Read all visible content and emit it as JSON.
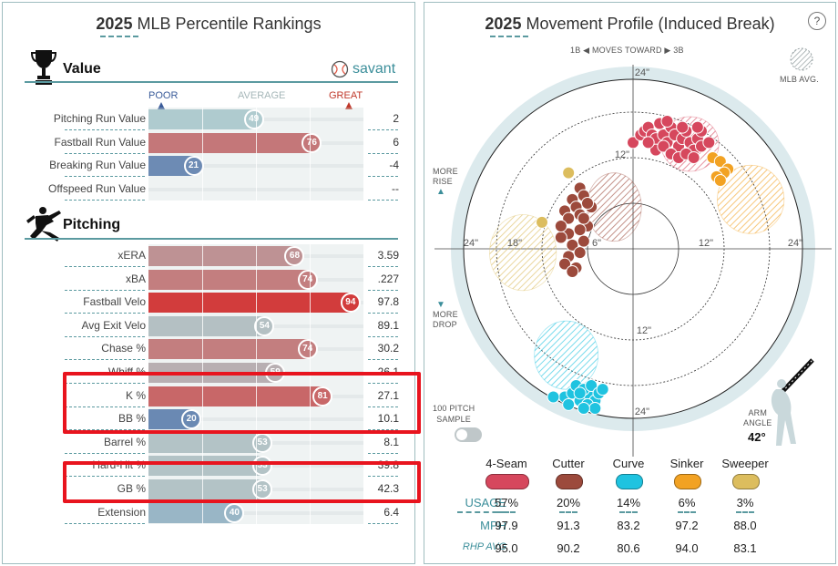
{
  "left_panel": {
    "year": "2025",
    "title": "MLB Percentile Rankings",
    "scale_labels": {
      "poor": "POOR",
      "average": "AVERAGE",
      "great": "GREAT"
    },
    "value_section": {
      "title": "Value",
      "logo": "savant",
      "rows": [
        {
          "label": "Pitching Run Value",
          "pct": 49,
          "value": "2"
        },
        {
          "label": "Fastball Run Value",
          "pct": 76,
          "value": "6"
        },
        {
          "label": "Breaking Run Value",
          "pct": 21,
          "value": "-4"
        },
        {
          "label": "Offspeed Run Value",
          "pct": null,
          "value": "--"
        }
      ]
    },
    "pitching_section": {
      "title": "Pitching",
      "rows": [
        {
          "label": "xERA",
          "pct": 68,
          "value": "3.59"
        },
        {
          "label": "xBA",
          "pct": 74,
          "value": ".227"
        },
        {
          "label": "Fastball Velo",
          "pct": 94,
          "value": "97.8"
        },
        {
          "label": "Avg Exit Velo",
          "pct": 54,
          "value": "89.1"
        },
        {
          "label": "Chase %",
          "pct": 74,
          "value": "30.2"
        },
        {
          "label": "Whiff %",
          "pct": 59,
          "value": "26.1"
        },
        {
          "label": "K %",
          "pct": 81,
          "value": "27.1"
        },
        {
          "label": "BB %",
          "pct": 20,
          "value": "10.1"
        },
        {
          "label": "Barrel %",
          "pct": 53,
          "value": "8.1"
        },
        {
          "label": "Hard-Hit %",
          "pct": 53,
          "value": "39.8"
        },
        {
          "label": "GB %",
          "pct": 53,
          "value": "42.3"
        },
        {
          "label": "Extension",
          "pct": 40,
          "value": "6.4"
        }
      ]
    }
  },
  "right_panel": {
    "year": "2025",
    "title": "Movement Profile (Induced Break)",
    "help": "?",
    "direction_text": {
      "left": "1B",
      "middle": "MOVES TOWARD",
      "right": "3B"
    },
    "legend_avg": "MLB AVG.",
    "more_rise": [
      "MORE",
      "RISE"
    ],
    "more_drop": [
      "MORE",
      "DROP"
    ],
    "sample": [
      "100 PITCH",
      "SAMPLE"
    ],
    "arm_angle_label": [
      "ARM",
      "ANGLE"
    ],
    "arm_angle_value": "42°",
    "ring_labels": {
      "inner": "6\"",
      "mid": "12\"",
      "outer": "18\"",
      "edge": "24\""
    },
    "table": {
      "row_labels": {
        "usage": "USAGE",
        "mph": "MPH",
        "rhp": "RHP AVG"
      },
      "pitches": [
        {
          "name": "4-Seam",
          "color": "#d6475d",
          "usage": "57%",
          "mph": "97.9",
          "rhp": "95.0"
        },
        {
          "name": "Cutter",
          "color": "#9c4a3c",
          "usage": "20%",
          "mph": "91.3",
          "rhp": "90.2"
        },
        {
          "name": "Curve",
          "color": "#1fc3e0",
          "usage": "14%",
          "mph": "83.2",
          "rhp": "80.6"
        },
        {
          "name": "Sinker",
          "color": "#f2a223",
          "usage": "6%",
          "mph": "97.2",
          "rhp": "94.0"
        },
        {
          "name": "Sweeper",
          "color": "#dcbd5e",
          "usage": "3%",
          "mph": "88.0",
          "rhp": "83.1"
        }
      ]
    }
  },
  "chart_data": {
    "type": "scatter",
    "title": "Movement Profile (Induced Break)",
    "xlabel": "",
    "ylabel": "",
    "xlim": [
      -24,
      24
    ],
    "ylim": [
      -24,
      24
    ],
    "units": "inches",
    "series": [
      {
        "name": "4-Seam",
        "color": "#d6475d",
        "points": [
          [
            0,
            14
          ],
          [
            1,
            15
          ],
          [
            1.5,
            15.5
          ],
          [
            2,
            16
          ],
          [
            2.5,
            15
          ],
          [
            3,
            14.5
          ],
          [
            3.5,
            16.5
          ],
          [
            4,
            15
          ],
          [
            4.5,
            14
          ],
          [
            5,
            16
          ],
          [
            5.5,
            15
          ],
          [
            6,
            13.5
          ],
          [
            6.5,
            14.5
          ],
          [
            7,
            15.5
          ],
          [
            7.5,
            14
          ],
          [
            8,
            13
          ],
          [
            8.5,
            14.5
          ],
          [
            9,
            15.5
          ],
          [
            3,
            13
          ],
          [
            4,
            13.5
          ],
          [
            5,
            12.5
          ],
          [
            6,
            12
          ],
          [
            7,
            12.5
          ],
          [
            8,
            12
          ],
          [
            9,
            13.5
          ],
          [
            2,
            14
          ],
          [
            4.5,
            16.8
          ],
          [
            6.5,
            16
          ],
          [
            8.5,
            16
          ],
          [
            10,
            14
          ]
        ],
        "avg": {
          "x": 7.5,
          "y": 13.8,
          "rx": 3.8,
          "ry": 3.6
        }
      },
      {
        "name": "Cutter",
        "color": "#9c4a3c",
        "points": [
          [
            -7,
            8
          ],
          [
            -6.5,
            7
          ],
          [
            -8,
            6.5
          ],
          [
            -7.5,
            5.5
          ],
          [
            -9,
            5
          ],
          [
            -8.5,
            4
          ],
          [
            -7,
            4.5
          ],
          [
            -6,
            3
          ],
          [
            -7,
            2.5
          ],
          [
            -8.5,
            2
          ],
          [
            -9.5,
            1.5
          ],
          [
            -8,
            0.5
          ],
          [
            -7,
            -0.5
          ],
          [
            -8.5,
            -1
          ],
          [
            -9,
            -2
          ],
          [
            -7.5,
            -2.5
          ],
          [
            -8,
            -3
          ],
          [
            -6.5,
            4
          ],
          [
            -5.5,
            5.5
          ],
          [
            -6,
            6
          ],
          [
            -9.5,
            3
          ],
          [
            -6.5,
            1
          ]
        ],
        "avg": {
          "x": -2.5,
          "y": 5.5,
          "rx": 3.6,
          "ry": 4.5
        }
      },
      {
        "name": "Curve",
        "color": "#1fc3e0",
        "points": [
          [
            -9,
            -19.5
          ],
          [
            -8,
            -19
          ],
          [
            -7,
            -20
          ],
          [
            -6,
            -19
          ],
          [
            -5,
            -20
          ],
          [
            -7.5,
            -18
          ],
          [
            -6.5,
            -18.5
          ],
          [
            -5.5,
            -18
          ],
          [
            -4.5,
            -19
          ],
          [
            -6,
            -20.5
          ],
          [
            -5,
            -21
          ],
          [
            -6.5,
            -21
          ],
          [
            -8.5,
            -20.5
          ],
          [
            -4,
            -18.5
          ],
          [
            -7,
            -19
          ],
          [
            -10.5,
            -19.5
          ]
        ],
        "avg": {
          "x": -8.8,
          "y": -14,
          "rx": 4.2,
          "ry": 4.5
        }
      },
      {
        "name": "Sinker",
        "color": "#f2a223",
        "points": [
          [
            10.5,
            12
          ],
          [
            11.5,
            11.5
          ],
          [
            12.5,
            10.5
          ],
          [
            12,
            10
          ],
          [
            11,
            9.5
          ],
          [
            11.5,
            9
          ]
        ],
        "avg": {
          "x": 15.5,
          "y": 6.5,
          "rx": 4.4,
          "ry": 4.5
        }
      },
      {
        "name": "Sweeper",
        "color": "#dcbd5e",
        "points": [
          [
            -8.5,
            10
          ],
          [
            -12,
            3.5
          ]
        ],
        "avg": {
          "x": -14.5,
          "y": -0.5,
          "rx": 4.4,
          "ry": 5.0
        }
      }
    ],
    "rings": [
      6,
      12,
      18,
      24
    ],
    "grid": true,
    "legend": "bottom"
  }
}
